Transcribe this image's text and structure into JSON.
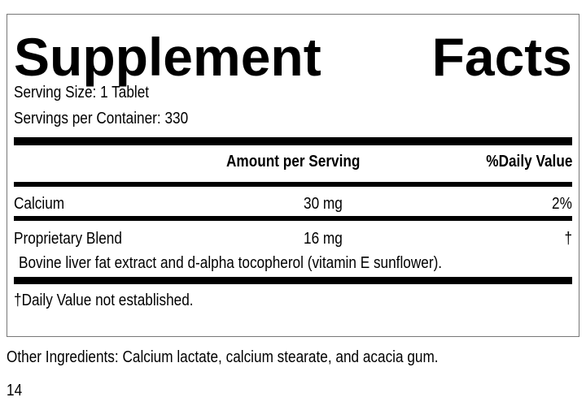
{
  "title": {
    "word1": "Supplement",
    "word2": "Facts"
  },
  "serving_size": "Serving Size: 1 Tablet",
  "servings_per_container": "Servings per Container: 330",
  "columns": {
    "amount": "Amount per Serving",
    "daily_value": "%Daily Value"
  },
  "rows": [
    {
      "name": "Calcium",
      "amount": "30 mg",
      "dv": "2%"
    },
    {
      "name": "Proprietary Blend",
      "amount": "16 mg",
      "dv": "†",
      "description": "Bovine liver fat extract and d-alpha tocopherol (vitamin E sunflower)."
    }
  ],
  "footnote": "†Daily Value not established.",
  "other_ingredients": "Other Ingredients: Calcium lactate, calcium stearate, and acacia gum.",
  "page_number": "14"
}
